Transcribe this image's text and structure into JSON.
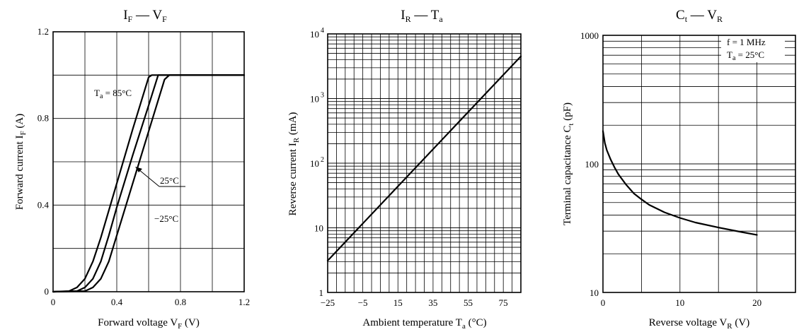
{
  "chart_data": [
    {
      "id": "iv",
      "type": "line",
      "title": {
        "main": "I",
        "sub1": "F",
        "sep": " — ",
        "main2": "V",
        "sub2": "F"
      },
      "xlabel": {
        "text": "Forward voltage  V",
        "sub": "F",
        "unit": "  (V)"
      },
      "ylabel": {
        "text": "Forward current  I",
        "sub": "F",
        "unit": "  (A)"
      },
      "xlim": [
        0,
        1.2
      ],
      "ylim": [
        0,
        1.2
      ],
      "x_ticks": [
        "0",
        "0.4",
        "0.8",
        "1.2"
      ],
      "y_ticks": [
        "0",
        "0.4",
        "0.8",
        "1.2"
      ],
      "grid": true,
      "series": [
        {
          "name": "Ta = 85°C",
          "x": [
            0,
            0.1,
            0.15,
            0.2,
            0.25,
            0.3,
            0.4,
            0.5,
            0.6,
            0.62,
            1.2
          ],
          "y": [
            0,
            0.003,
            0.02,
            0.06,
            0.14,
            0.25,
            0.5,
            0.75,
            0.99,
            1.0,
            1.0
          ]
        },
        {
          "name": "25°C",
          "x": [
            0,
            0.15,
            0.2,
            0.25,
            0.3,
            0.35,
            0.4,
            0.5,
            0.6,
            0.66,
            0.68,
            1.2
          ],
          "y": [
            0,
            0.003,
            0.02,
            0.06,
            0.14,
            0.26,
            0.39,
            0.63,
            0.86,
            1.0,
            1.0,
            1.0
          ]
        },
        {
          "name": "−25°C",
          "x": [
            0,
            0.2,
            0.25,
            0.3,
            0.35,
            0.4,
            0.5,
            0.6,
            0.7,
            0.73,
            1.2
          ],
          "y": [
            0,
            0.003,
            0.02,
            0.06,
            0.14,
            0.26,
            0.5,
            0.74,
            0.98,
            1.0,
            1.0
          ]
        }
      ],
      "annotations": [
        {
          "text": "T",
          "sub": "a",
          "rest": " = 85°C"
        },
        {
          "text": "25°C"
        },
        {
          "text": "−25°C"
        }
      ]
    },
    {
      "id": "irt",
      "type": "line",
      "title": {
        "main": "I",
        "sub1": "R",
        "sep": " — ",
        "main2": "T",
        "sub2": "a"
      },
      "xlabel": {
        "text": "Ambient temperature  T",
        "sub": "a",
        "unit": "  (°C)"
      },
      "ylabel": {
        "text": "Reverse current  I",
        "sub": "R",
        "unit": "  (mA)"
      },
      "xlim": [
        -25,
        85
      ],
      "ylim": [
        1,
        10000
      ],
      "yscale": "log",
      "x_ticks": [
        "−25",
        "−5",
        "15",
        "35",
        "55",
        "75"
      ],
      "y_ticks": [
        "1",
        "10",
        "10",
        "10",
        "10"
      ],
      "y_tick_exps": [
        "",
        "",
        "2",
        "3",
        "4"
      ],
      "grid": true,
      "series": [
        {
          "name": "",
          "x": [
            -25,
            85
          ],
          "y": [
            3.1,
            4500
          ]
        }
      ]
    },
    {
      "id": "ctv",
      "type": "line",
      "title": {
        "main": "C",
        "sub1": "t",
        "sep": " — ",
        "main2": "V",
        "sub2": "R"
      },
      "xlabel": {
        "text": "Reverse voltage  V",
        "sub": "R",
        "unit": "  (V)"
      },
      "ylabel": {
        "text": "Terminal capacitance  C",
        "sub": "t",
        "unit": "  (pF)"
      },
      "xlim": [
        0,
        25
      ],
      "ylim": [
        10,
        1000
      ],
      "yscale": "log",
      "x_ticks": [
        "0",
        "10",
        "20"
      ],
      "y_ticks": [
        "10",
        "100",
        "1000"
      ],
      "grid": true,
      "series": [
        {
          "name": "",
          "x": [
            0,
            0.25,
            0.5,
            1,
            1.5,
            2,
            3,
            4,
            5,
            6,
            8,
            10,
            12,
            15,
            18,
            20
          ],
          "y": [
            180,
            145,
            128,
            108,
            94,
            83,
            69,
            59,
            53,
            48,
            42,
            38,
            35,
            32,
            29.5,
            28
          ]
        }
      ],
      "annotations": [
        {
          "text": "f = 1 MHz"
        },
        {
          "text": "T",
          "sub": "a",
          "rest": " = 25°C"
        }
      ]
    }
  ]
}
